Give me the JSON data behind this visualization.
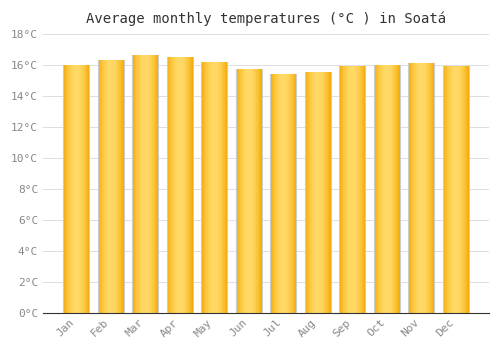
{
  "title": "Average monthly temperatures (°C ) in Soatá",
  "months": [
    "Jan",
    "Feb",
    "Mar",
    "Apr",
    "May",
    "Jun",
    "Jul",
    "Aug",
    "Sep",
    "Oct",
    "Nov",
    "Dec"
  ],
  "values": [
    16.0,
    16.3,
    16.6,
    16.5,
    16.2,
    15.7,
    15.4,
    15.5,
    15.9,
    16.0,
    16.1,
    15.9
  ],
  "bar_color_center": "#FFD966",
  "bar_color_edge": "#F5A800",
  "background_color": "#FFFFFF",
  "plot_bg_color": "#FFFFFF",
  "grid_color": "#DDDDDD",
  "ylim": [
    0,
    18
  ],
  "ytick_step": 2,
  "title_fontsize": 10,
  "tick_fontsize": 8,
  "tick_color": "#888888",
  "title_color": "#333333"
}
